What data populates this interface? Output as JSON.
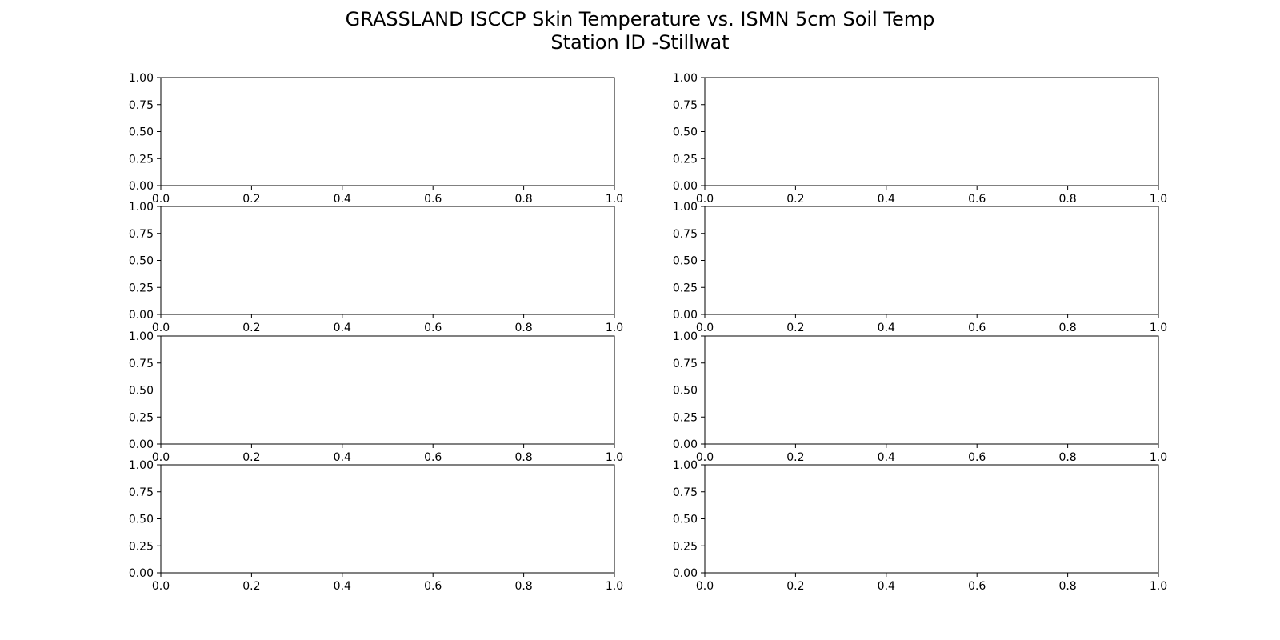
{
  "title": {
    "line1": "GRASSLAND ISCCP Skin Temperature vs. ISMN 5cm Soil Temp",
    "line2": "Station ID -Stillwat"
  },
  "chart_data": {
    "type": "line",
    "layout": "4 rows x 2 columns of empty subplots",
    "title": "GRASSLAND ISCCP Skin Temperature vs. ISMN 5cm Soil Temp",
    "subtitle": "Station ID -Stillwat",
    "xlabel": "",
    "ylabel": "",
    "xlim": [
      0.0,
      1.0
    ],
    "ylim": [
      0.0,
      1.0
    ],
    "xticks": [
      "0.0",
      "0.2",
      "0.4",
      "0.6",
      "0.8",
      "1.0"
    ],
    "yticks": [
      "0.00",
      "0.25",
      "0.50",
      "0.75",
      "1.00"
    ],
    "grid": false,
    "series": [],
    "subplots": [
      {
        "row": 1,
        "col": 1,
        "series": []
      },
      {
        "row": 1,
        "col": 2,
        "series": []
      },
      {
        "row": 2,
        "col": 1,
        "series": []
      },
      {
        "row": 2,
        "col": 2,
        "series": []
      },
      {
        "row": 3,
        "col": 1,
        "series": []
      },
      {
        "row": 3,
        "col": 2,
        "series": []
      },
      {
        "row": 4,
        "col": 1,
        "series": []
      },
      {
        "row": 4,
        "col": 2,
        "series": []
      }
    ]
  },
  "colors": {
    "axis": "#000000",
    "background": "#ffffff"
  }
}
